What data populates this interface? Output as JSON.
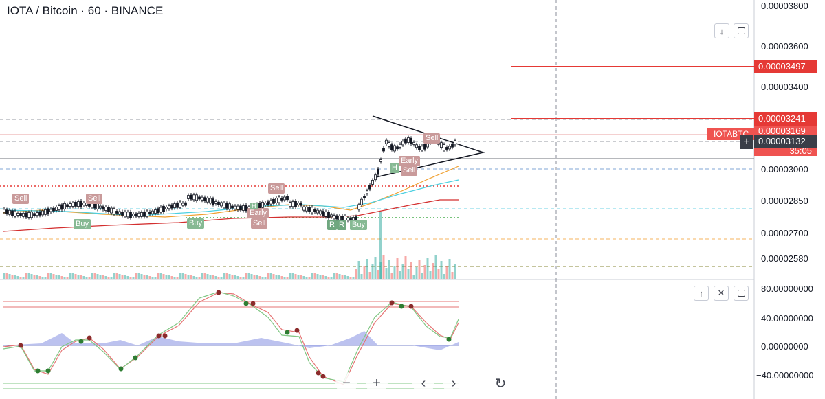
{
  "header": {
    "title": "IOTA / Bitcoin · 60 · BINANCE"
  },
  "toolbar": {
    "collapse_icon": "↓",
    "maximize_icon": "▢",
    "up_icon": "↑",
    "close_icon": "✕"
  },
  "price_axis": {
    "labels": [
      "0.00003800",
      "0.00003600",
      "0.00003400",
      "0.00003000",
      "0.00002850",
      "0.00002700",
      "0.00002580"
    ],
    "tags": {
      "red_level_1": "0.00003497",
      "red_level_2": "0.00003241",
      "partial_hidden": "0.00003169",
      "symbol_badge": "IOTABTC",
      "current_price": "0.00003132",
      "countdown": "35:05"
    }
  },
  "indicator_axis": {
    "labels": [
      "80.00000000",
      "40.00000000",
      "0.00000000",
      "−40.00000000"
    ]
  },
  "signals": [
    {
      "text": "Sell",
      "type": "sell"
    },
    {
      "text": "Sell",
      "type": "sell"
    },
    {
      "text": "Buy",
      "type": "buy"
    },
    {
      "text": "Buy",
      "type": "buy"
    },
    {
      "text": "Sell",
      "type": "sell"
    },
    {
      "text": "Early",
      "type": "sell"
    },
    {
      "text": "Sell",
      "type": "sell"
    },
    {
      "text": "H",
      "type": "buy"
    },
    {
      "text": "R",
      "type": "buy"
    },
    {
      "text": "R",
      "type": "buy"
    },
    {
      "text": "Buy",
      "type": "buy"
    },
    {
      "text": "H",
      "type": "buy"
    },
    {
      "text": "Early",
      "type": "sell"
    },
    {
      "text": "Sell",
      "type": "sell"
    },
    {
      "text": "Sell",
      "type": "sell"
    }
  ],
  "nav": {
    "zoom_out": "−",
    "zoom_in": "+",
    "scroll_left": "‹",
    "scroll_right": "›",
    "reset": "↻"
  },
  "colors": {
    "up": "#26a69a",
    "down": "#ef5350",
    "sell_badge": "#c99a9a",
    "buy_badge": "#86b993",
    "red_line": "#e53935",
    "axis_tag_dark": "#3a3e48"
  },
  "icons": [
    "arrow-down-icon",
    "maximize-icon",
    "arrow-up-icon",
    "close-icon",
    "zoom-out-icon",
    "zoom-in-icon",
    "chevron-left-icon",
    "chevron-right-icon",
    "reset-icon",
    "crosshair-icon"
  ]
}
